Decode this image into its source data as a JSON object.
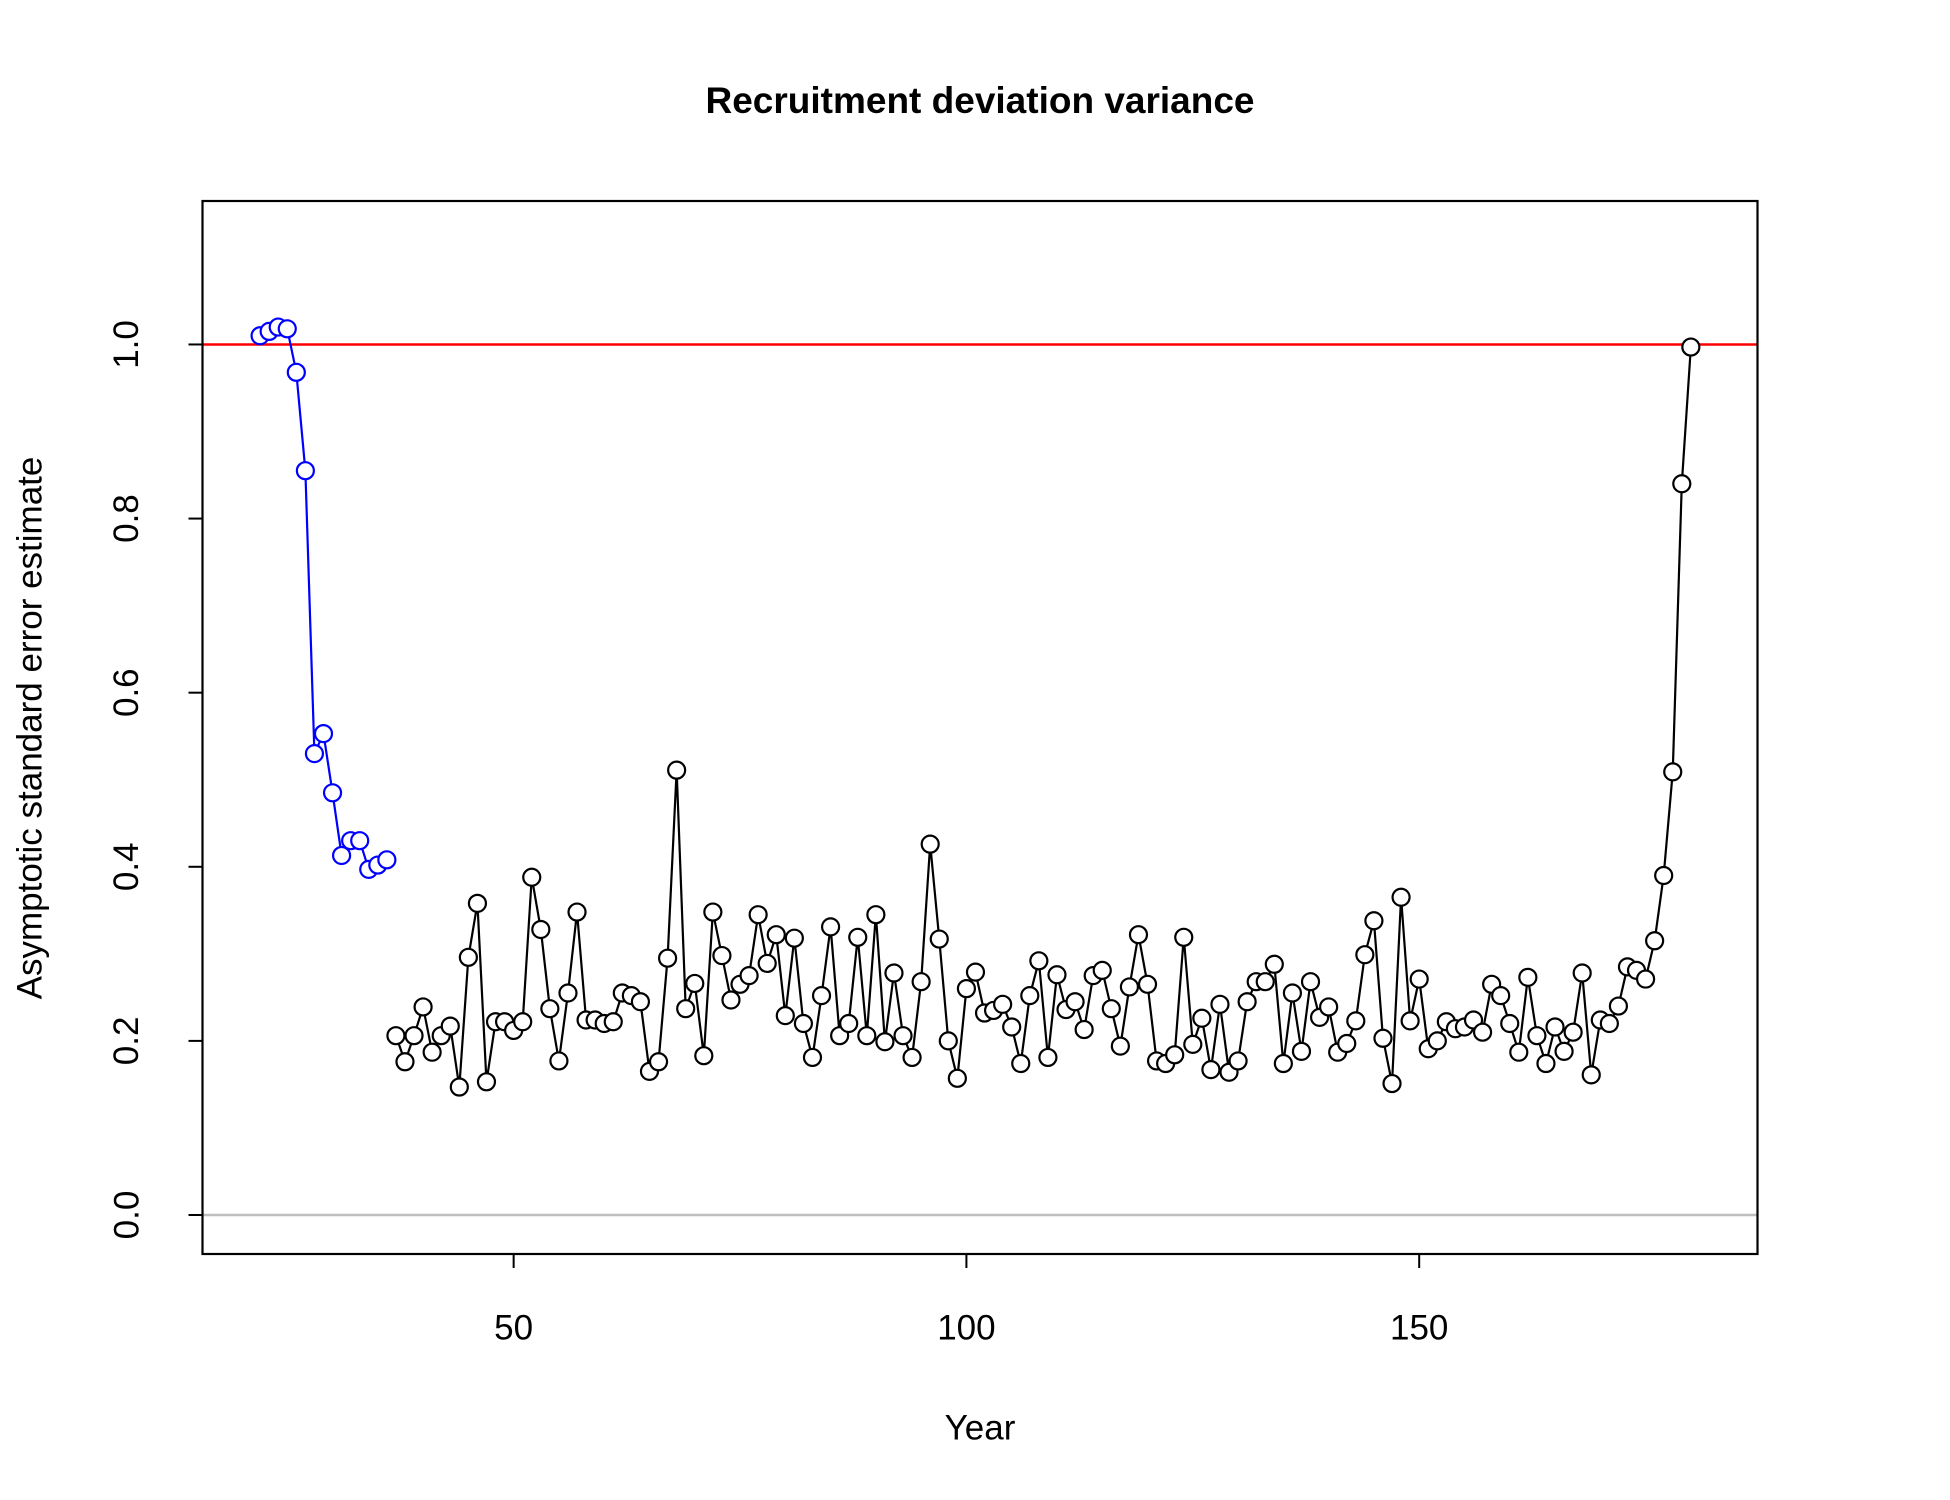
{
  "chart_data": {
    "type": "line",
    "title": "Recruitment deviation variance",
    "xlabel": "Year",
    "ylabel": "Asymptotic standard error estimate",
    "xlim": [
      15.64,
      187.36
    ],
    "ylim": [
      -0.0448,
      1.1648
    ],
    "xticks": [
      50,
      100,
      150
    ],
    "yticks": [
      {
        "value": 0,
        "label": "0.0"
      },
      {
        "value": 0.2,
        "label": "0.2"
      },
      {
        "value": 0.4,
        "label": "0.4"
      },
      {
        "value": 0.6,
        "label": "0.6"
      },
      {
        "value": 0.8,
        "label": "0.8"
      },
      {
        "value": 1,
        "label": "1.0"
      }
    ],
    "hlines": [
      {
        "value": 1,
        "color": "#ff0000"
      },
      {
        "value": 0,
        "color": "#bebebe"
      }
    ],
    "series": [
      {
        "color": "#0000ff",
        "x": [
          22,
          23,
          24,
          25,
          26,
          27,
          28,
          29,
          30,
          31,
          32,
          33,
          34,
          35,
          36
        ],
        "values": [
          1.01,
          1.015,
          1.02,
          1.018,
          0.968,
          0.855,
          0.53,
          0.553,
          0.485,
          0.413,
          0.43,
          0.43,
          0.397,
          0.402,
          0.408
        ]
      },
      {
        "color": "#000000",
        "x": [
          37,
          38,
          39,
          40,
          41,
          42,
          43,
          44,
          45,
          46,
          47,
          48,
          49,
          50,
          51,
          52,
          53,
          54,
          55,
          56,
          57,
          58,
          59,
          60,
          61,
          62,
          63,
          64,
          65,
          66,
          67,
          68,
          69,
          70,
          71,
          72,
          73,
          74,
          75,
          76,
          77,
          78,
          79,
          80,
          81,
          82,
          83,
          84,
          85,
          86,
          87,
          88,
          89,
          90,
          91,
          92,
          93,
          94,
          95,
          96,
          97,
          98,
          99,
          100,
          101,
          102,
          103,
          104,
          105,
          106,
          107,
          108,
          109,
          110,
          111,
          112,
          113,
          114,
          115,
          116,
          117,
          118,
          119,
          120,
          121,
          122,
          123,
          124,
          125,
          126,
          127,
          128,
          129,
          130,
          131,
          132,
          133,
          134,
          135,
          136,
          137,
          138,
          139,
          140,
          141,
          142,
          143,
          144,
          145,
          146,
          147,
          148,
          149,
          150,
          151,
          152,
          153,
          154,
          155,
          156,
          157,
          158,
          159,
          160,
          161,
          162,
          163,
          164,
          165,
          166,
          167,
          168,
          169,
          170,
          171,
          172,
          173,
          174,
          175,
          176,
          177,
          178,
          179,
          180
        ],
        "values": [
          0.206,
          0.176,
          0.206,
          0.239,
          0.187,
          0.206,
          0.217,
          0.147,
          0.296,
          0.358,
          0.153,
          0.222,
          0.222,
          0.212,
          0.222,
          0.388,
          0.328,
          0.237,
          0.177,
          0.255,
          0.348,
          0.224,
          0.224,
          0.22,
          0.222,
          0.255,
          0.252,
          0.245,
          0.165,
          0.176,
          0.295,
          0.511,
          0.237,
          0.266,
          0.183,
          0.348,
          0.298,
          0.247,
          0.265,
          0.275,
          0.345,
          0.289,
          0.322,
          0.229,
          0.318,
          0.22,
          0.181,
          0.252,
          0.331,
          0.206,
          0.22,
          0.319,
          0.206,
          0.345,
          0.199,
          0.278,
          0.206,
          0.181,
          0.268,
          0.426,
          0.317,
          0.2,
          0.157,
          0.26,
          0.279,
          0.232,
          0.235,
          0.242,
          0.216,
          0.174,
          0.252,
          0.292,
          0.181,
          0.276,
          0.236,
          0.245,
          0.213,
          0.275,
          0.281,
          0.237,
          0.194,
          0.262,
          0.322,
          0.265,
          0.177,
          0.174,
          0.184,
          0.319,
          0.196,
          0.226,
          0.167,
          0.242,
          0.164,
          0.177,
          0.245,
          0.268,
          0.268,
          0.288,
          0.174,
          0.255,
          0.188,
          0.268,
          0.227,
          0.239,
          0.187,
          0.197,
          0.223,
          0.299,
          0.338,
          0.203,
          0.151,
          0.365,
          0.223,
          0.271,
          0.191,
          0.2,
          0.222,
          0.214,
          0.216,
          0.224,
          0.21,
          0.265,
          0.252,
          0.22,
          0.187,
          0.273,
          0.206,
          0.174,
          0.216,
          0.188,
          0.21,
          0.278,
          0.161,
          0.224,
          0.22,
          0.24,
          0.285,
          0.281,
          0.271,
          0.315,
          0.39,
          0.509,
          0.84,
          0.997
        ]
      }
    ]
  }
}
